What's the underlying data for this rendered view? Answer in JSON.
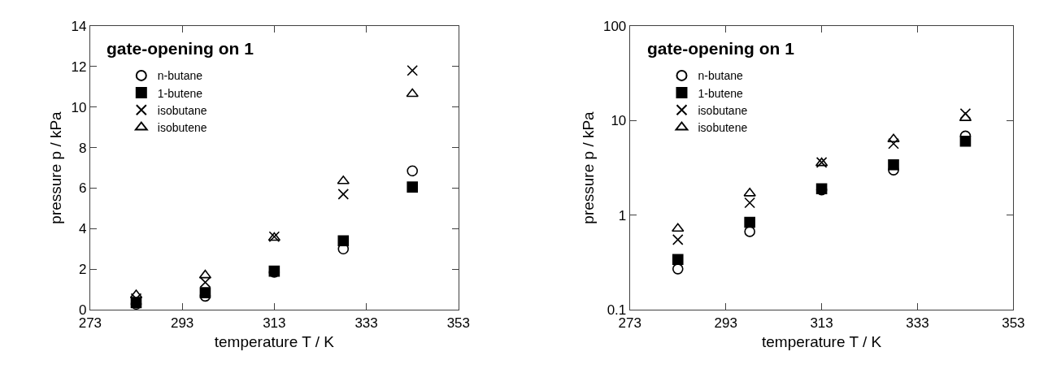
{
  "chart_data": [
    {
      "type": "scatter",
      "title": "gate-opening on 1",
      "xlabel": "temperature T / K",
      "ylabel": "pressure p / kPa",
      "x": [
        283,
        298,
        313,
        328,
        343
      ],
      "series": [
        {
          "name": "n-butane",
          "color": "#000000",
          "marker": "circle",
          "values": [
            0.27,
            0.67,
            1.85,
            3.0,
            6.85
          ]
        },
        {
          "name": "1-butene",
          "color": "#000000",
          "marker": "square",
          "values": [
            0.34,
            0.84,
            1.9,
            3.4,
            6.05
          ]
        },
        {
          "name": "isobutane",
          "color": "#000000",
          "marker": "cross",
          "values": [
            0.55,
            1.35,
            3.6,
            5.7,
            11.8
          ]
        },
        {
          "name": "isobutene",
          "color": "#000000",
          "marker": "triangle",
          "values": [
            0.72,
            1.7,
            3.55,
            6.35,
            10.65
          ]
        }
      ],
      "xlim": [
        273,
        353
      ],
      "xticks": [
        273,
        293,
        313,
        333,
        353
      ],
      "ylim": [
        0,
        14
      ],
      "yticks": [
        0,
        2,
        4,
        6,
        8,
        10,
        12,
        14
      ],
      "legend": "top left"
    },
    {
      "type": "scatter",
      "title": "gate-opening on 1",
      "xlabel": "temperature T / K",
      "ylabel": "pressure p / kPa",
      "x": [
        283,
        298,
        313,
        328,
        343
      ],
      "series": [
        {
          "name": "n-butane",
          "color": "#000000",
          "marker": "circle",
          "values": [
            0.27,
            0.67,
            1.85,
            3.0,
            6.85
          ]
        },
        {
          "name": "1-butene",
          "color": "#000000",
          "marker": "square",
          "values": [
            0.34,
            0.84,
            1.9,
            3.4,
            6.05
          ]
        },
        {
          "name": "isobutane",
          "color": "#000000",
          "marker": "cross",
          "values": [
            0.55,
            1.35,
            3.6,
            5.7,
            11.8
          ]
        },
        {
          "name": "isobutene",
          "color": "#000000",
          "marker": "triangle",
          "values": [
            0.72,
            1.7,
            3.55,
            6.35,
            10.65
          ]
        }
      ],
      "xlim": [
        273,
        353
      ],
      "xticks": [
        273,
        293,
        313,
        333,
        353
      ],
      "ylim": [
        0.1,
        100
      ],
      "yticks": [
        0.1,
        1,
        10,
        100
      ],
      "log": "y",
      "legend": "top left"
    }
  ]
}
